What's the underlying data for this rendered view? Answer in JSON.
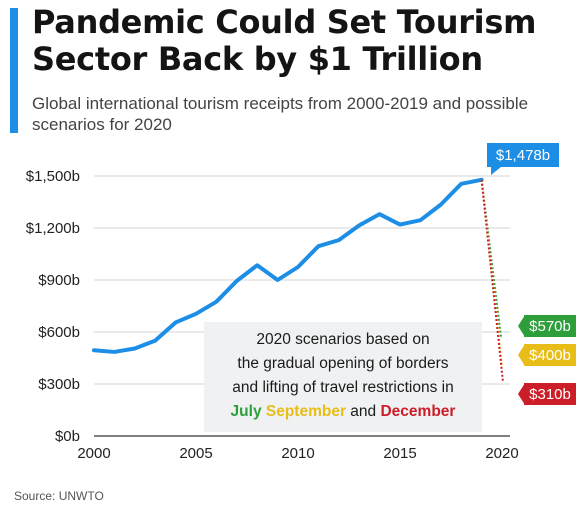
{
  "header": {
    "title": "Pandemic Could Set Tourism Sector Back by $1 Trillion",
    "subtitle": "Global international tourism receipts from 2000-2019 and possible scenarios for 2020"
  },
  "chart_data": {
    "type": "line",
    "x": [
      2000,
      2001,
      2002,
      2003,
      2004,
      2005,
      2006,
      2007,
      2008,
      2009,
      2010,
      2011,
      2012,
      2013,
      2014,
      2015,
      2016,
      2017,
      2018,
      2019
    ],
    "series": [
      {
        "values": [
          495,
          485,
          505,
          550,
          655,
          705,
          775,
          895,
          985,
          900,
          975,
          1095,
          1130,
          1215,
          1280,
          1220,
          1245,
          1335,
          1455,
          1478
        ],
        "color": "#1d8ee6"
      }
    ],
    "scenarios": [
      {
        "month": "July",
        "value": 570,
        "label": "$570b",
        "color": "#2e9e3a"
      },
      {
        "month": "September",
        "value": 400,
        "label": "$400b",
        "color": "#e8bd18"
      },
      {
        "month": "December",
        "value": 310,
        "label": "$310b",
        "color": "#cc1e28"
      }
    ],
    "end_label": "$1,478b",
    "ylim": [
      0,
      1500
    ],
    "yticks": [
      0,
      300,
      600,
      900,
      1200,
      1500
    ],
    "ytick_labels": [
      "$0b",
      "$300b",
      "$600b",
      "$900b",
      "$1,200b",
      "$1,500b"
    ],
    "xlim": [
      2000,
      2020
    ],
    "xticks": [
      2000,
      2005,
      2010,
      2015,
      2020
    ],
    "xtick_labels": [
      "2000",
      "2005",
      "2010",
      "2015",
      "2020"
    ],
    "grid": true,
    "annotation": {
      "lines": [
        "2020 scenarios based on",
        "the gradual opening of borders",
        "and lifting of travel restrictions in"
      ],
      "last_line": [
        {
          "text": "July",
          "color": "#2e9e3a"
        },
        {
          "text": " ",
          "color": "#1b1b1b"
        },
        {
          "text": "September",
          "color": "#e8bd18"
        },
        {
          "text": " and ",
          "color": "#1b1b1b"
        },
        {
          "text": "December",
          "color": "#cc1e28"
        }
      ]
    }
  },
  "footer": {
    "source": "Source: UNWTO"
  }
}
